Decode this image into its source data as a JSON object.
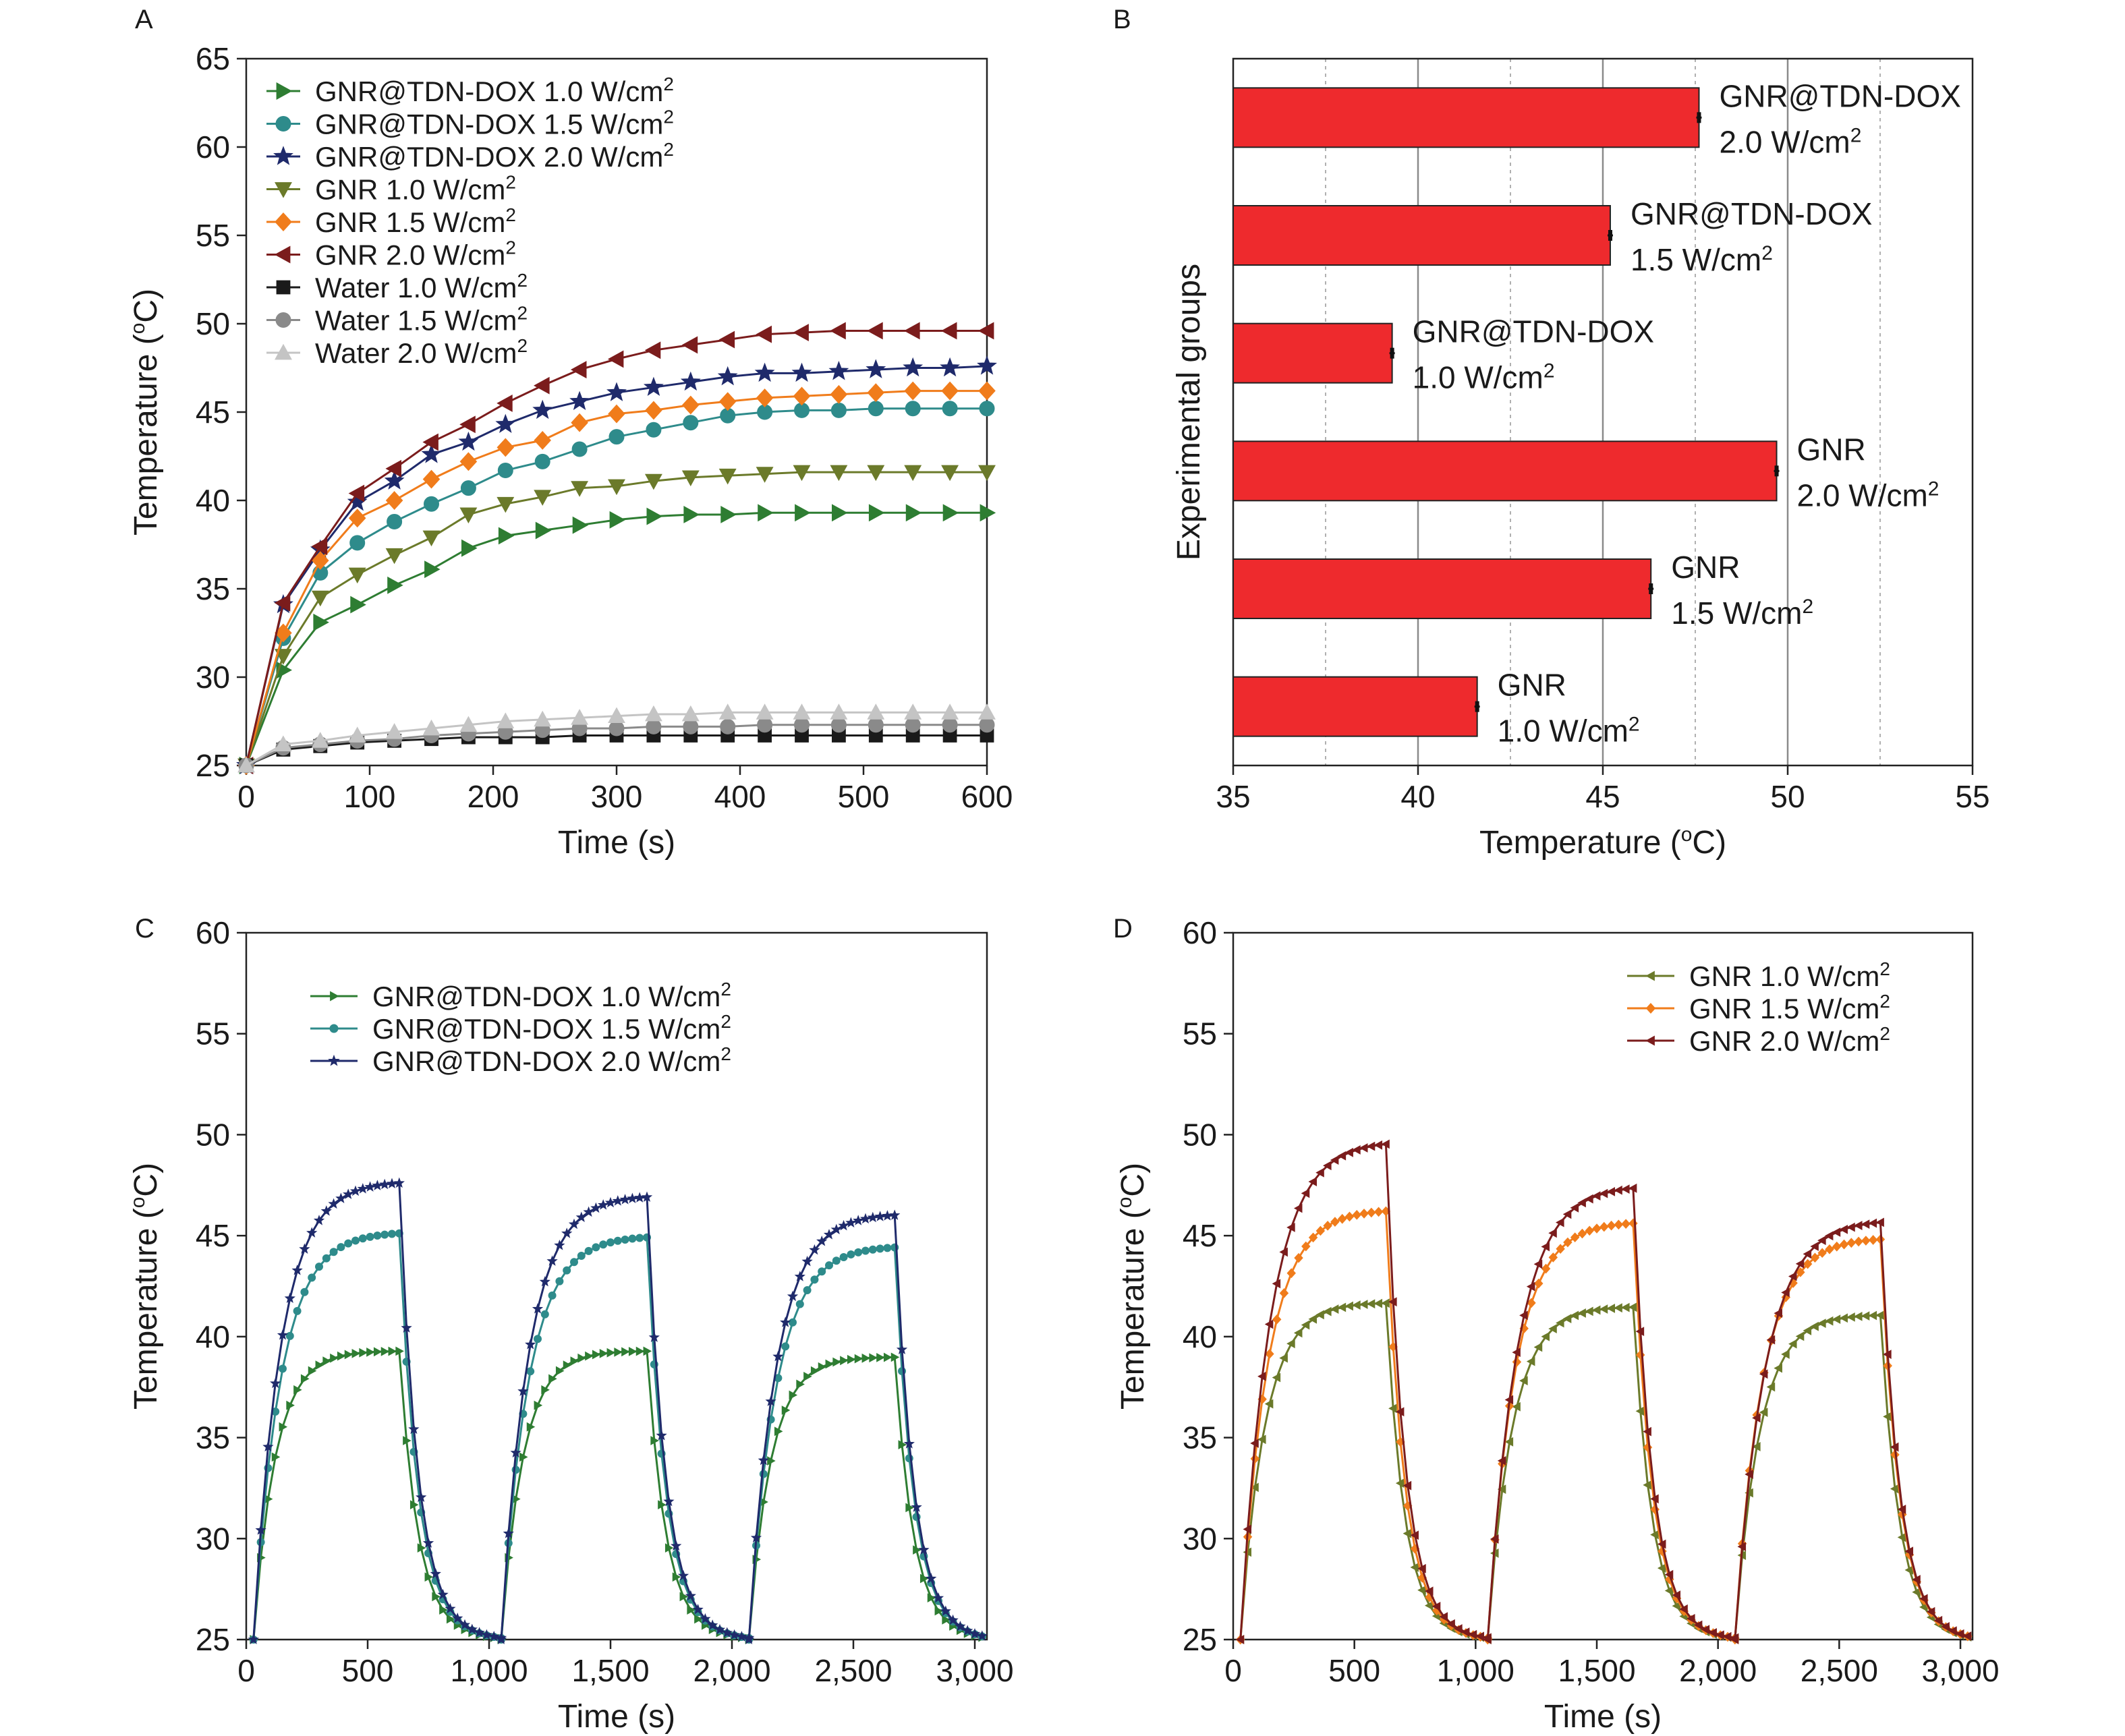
{
  "figure": {
    "panels": [
      "A",
      "B",
      "C",
      "D"
    ]
  },
  "chart_data": [
    {
      "id": "A",
      "type": "line",
      "xlabel": "Time (s)",
      "ylabel": "Temperature (°C)",
      "xlim": [
        0,
        600
      ],
      "ylim": [
        25,
        65
      ],
      "xticks": [
        "0",
        "100",
        "200",
        "300",
        "400",
        "500",
        "600"
      ],
      "yticks": [
        "25",
        "30",
        "35",
        "40",
        "45",
        "50",
        "55",
        "60",
        "65"
      ],
      "legend": "top-left",
      "x": [
        0,
        30,
        60,
        90,
        120,
        150,
        180,
        210,
        240,
        270,
        300,
        330,
        360,
        390,
        420,
        450,
        480,
        510,
        540,
        570,
        600
      ],
      "series": [
        {
          "name": "GNR@TDN-DOX 1.0 W/cm²",
          "color": "#2e7d32",
          "marker": "triangle-right",
          "values": [
            25,
            30.4,
            33.1,
            34.1,
            35.2,
            36.1,
            37.3,
            38.0,
            38.3,
            38.6,
            38.9,
            39.1,
            39.2,
            39.2,
            39.3,
            39.3,
            39.3,
            39.3,
            39.3,
            39.3,
            39.3
          ]
        },
        {
          "name": "GNR@TDN-DOX 1.5 W/cm²",
          "color": "#2e8b8b",
          "marker": "circle",
          "values": [
            25,
            32.2,
            35.9,
            37.6,
            38.8,
            39.8,
            40.7,
            41.7,
            42.2,
            42.9,
            43.6,
            44.0,
            44.4,
            44.8,
            45.0,
            45.1,
            45.1,
            45.2,
            45.2,
            45.2,
            45.2
          ]
        },
        {
          "name": "GNR@TDN-DOX 2.0 W/cm²",
          "color": "#1f2a6b",
          "marker": "star",
          "values": [
            25,
            34.1,
            37.2,
            39.9,
            41.1,
            42.6,
            43.3,
            44.3,
            45.1,
            45.6,
            46.1,
            46.4,
            46.7,
            47.0,
            47.2,
            47.2,
            47.3,
            47.4,
            47.5,
            47.5,
            47.6
          ]
        },
        {
          "name": "GNR 1.0 W/cm²",
          "color": "#6b7a2a",
          "marker": "triangle-down",
          "values": [
            25,
            31.2,
            34.5,
            35.8,
            36.9,
            37.9,
            39.2,
            39.8,
            40.2,
            40.7,
            40.8,
            41.1,
            41.3,
            41.4,
            41.5,
            41.6,
            41.6,
            41.6,
            41.6,
            41.6,
            41.6
          ]
        },
        {
          "name": "GNR 1.5 W/cm²",
          "color": "#f07c1b",
          "marker": "diamond",
          "values": [
            25,
            32.5,
            36.6,
            39.0,
            40.0,
            41.2,
            42.2,
            43.0,
            43.4,
            44.4,
            44.9,
            45.1,
            45.4,
            45.6,
            45.8,
            45.9,
            46.0,
            46.1,
            46.2,
            46.2,
            46.2
          ]
        },
        {
          "name": "GNR 2.0 W/cm²",
          "color": "#7b1c1c",
          "marker": "triangle-left",
          "values": [
            25,
            34.2,
            37.4,
            40.4,
            41.8,
            43.3,
            44.3,
            45.5,
            46.5,
            47.4,
            48.0,
            48.5,
            48.8,
            49.1,
            49.4,
            49.5,
            49.6,
            49.6,
            49.6,
            49.6,
            49.6
          ]
        },
        {
          "name": "Water 1.0 W/cm²",
          "color": "#1a1a1a",
          "marker": "square",
          "values": [
            25,
            25.9,
            26.1,
            26.3,
            26.4,
            26.5,
            26.6,
            26.6,
            26.6,
            26.7,
            26.7,
            26.7,
            26.7,
            26.7,
            26.7,
            26.7,
            26.7,
            26.7,
            26.7,
            26.7,
            26.7
          ]
        },
        {
          "name": "Water 1.5 W/cm²",
          "color": "#8a8a8a",
          "marker": "circle",
          "values": [
            25,
            26.0,
            26.2,
            26.4,
            26.5,
            26.7,
            26.8,
            26.9,
            27.0,
            27.1,
            27.1,
            27.2,
            27.2,
            27.2,
            27.3,
            27.3,
            27.3,
            27.3,
            27.3,
            27.3,
            27.3
          ]
        },
        {
          "name": "Water 2.0 W/cm²",
          "color": "#c4c4c4",
          "marker": "triangle-up",
          "values": [
            25,
            26.2,
            26.4,
            26.7,
            26.9,
            27.1,
            27.3,
            27.5,
            27.6,
            27.7,
            27.8,
            27.9,
            27.9,
            28.0,
            28.0,
            28.0,
            28.0,
            28.0,
            28.0,
            28.0,
            28.0
          ]
        }
      ]
    },
    {
      "id": "B",
      "type": "bar",
      "orientation": "horizontal",
      "xlabel": "Temperature (°C)",
      "ylabel": "Experimental groups",
      "xlim": [
        35,
        55
      ],
      "xticks": [
        "35",
        "40",
        "45",
        "50",
        "55"
      ],
      "bar_color": "#ee2a2d",
      "categories": [
        {
          "line1": "GNR@TDN-DOX",
          "line2": "2.0 W/cm²",
          "value": 47.6,
          "error": 0.15
        },
        {
          "line1": "GNR@TDN-DOX",
          "line2": "1.5 W/cm²",
          "value": 45.2,
          "error": 0.1
        },
        {
          "line1": "GNR@TDN-DOX",
          "line2": "1.0 W/cm²",
          "value": 39.3,
          "error": 0.1
        },
        {
          "line1": "GNR",
          "line2": "2.0 W/cm²",
          "value": 49.7,
          "error": 0.1
        },
        {
          "line1": "GNR",
          "line2": "1.5 W/cm²",
          "value": 46.3,
          "error": 0.1
        },
        {
          "line1": "GNR",
          "line2": "1.0 W/cm²",
          "value": 41.6,
          "error": 0.1
        }
      ]
    },
    {
      "id": "C",
      "type": "line",
      "xlabel": "Time (s)",
      "ylabel": "Temperature (°C)",
      "xlim": [
        0,
        3050
      ],
      "ylim": [
        25,
        60
      ],
      "xticks": [
        "0",
        "500",
        "1,000",
        "1,500",
        "2,000",
        "2,500",
        "3,000"
      ],
      "yticks": [
        "25",
        "30",
        "35",
        "40",
        "45",
        "50",
        "55",
        "60"
      ],
      "legend": "top-left",
      "cycles": [
        {
          "start": 30,
          "off": 630,
          "end": 1050
        },
        {
          "start": 1050,
          "off": 1650,
          "end": 2070
        },
        {
          "start": 2070,
          "off": 2670,
          "end": 3030
        }
      ],
      "series": [
        {
          "name": "GNR@TDN-DOX 1.0 W/cm²",
          "color": "#2e7d32",
          "marker": "triangle-right",
          "plateaus": [
            39.3,
            39.3,
            39.0
          ],
          "tau_heat": 90
        },
        {
          "name": "GNR@TDN-DOX 1.5 W/cm²",
          "color": "#2e8b8b",
          "marker": "circle",
          "plateaus": [
            45.2,
            45.0,
            44.5
          ],
          "tau_heat": 110
        },
        {
          "name": "GNR@TDN-DOX 2.0 W/cm²",
          "color": "#1f2a6b",
          "marker": "star",
          "plateaus": [
            47.7,
            47.0,
            46.1
          ],
          "tau_heat": 110
        }
      ]
    },
    {
      "id": "D",
      "type": "line",
      "xlabel": "Time (s)",
      "ylabel": "Temperature (°C)",
      "xlim": [
        0,
        3050
      ],
      "ylim": [
        25,
        60
      ],
      "xticks": [
        "0",
        "500",
        "1,000",
        "1,500",
        "2,000",
        "2,500",
        "3,000"
      ],
      "yticks": [
        "25",
        "30",
        "35",
        "40",
        "45",
        "50",
        "55",
        "60"
      ],
      "legend": "top-right",
      "cycles": [
        {
          "start": 30,
          "off": 630,
          "end": 1050
        },
        {
          "start": 1050,
          "off": 1650,
          "end": 2070
        },
        {
          "start": 2070,
          "off": 2670,
          "end": 3030
        }
      ],
      "series": [
        {
          "name": "GNR 1.0 W/cm²",
          "color": "#6b7a2a",
          "marker": "triangle-left",
          "plateaus": [
            41.7,
            41.5,
            41.1
          ],
          "tau_heat": 100
        },
        {
          "name": "GNR 1.5 W/cm²",
          "color": "#f07c1b",
          "marker": "diamond",
          "plateaus": [
            46.3,
            45.7,
            44.9
          ],
          "tau_heat": 110
        },
        {
          "name": "GNR 2.0 W/cm²",
          "color": "#7b1c1c",
          "marker": "triangle-left",
          "plateaus": [
            49.7,
            47.5,
            45.8
          ],
          "tau_heat": 120
        }
      ]
    }
  ]
}
